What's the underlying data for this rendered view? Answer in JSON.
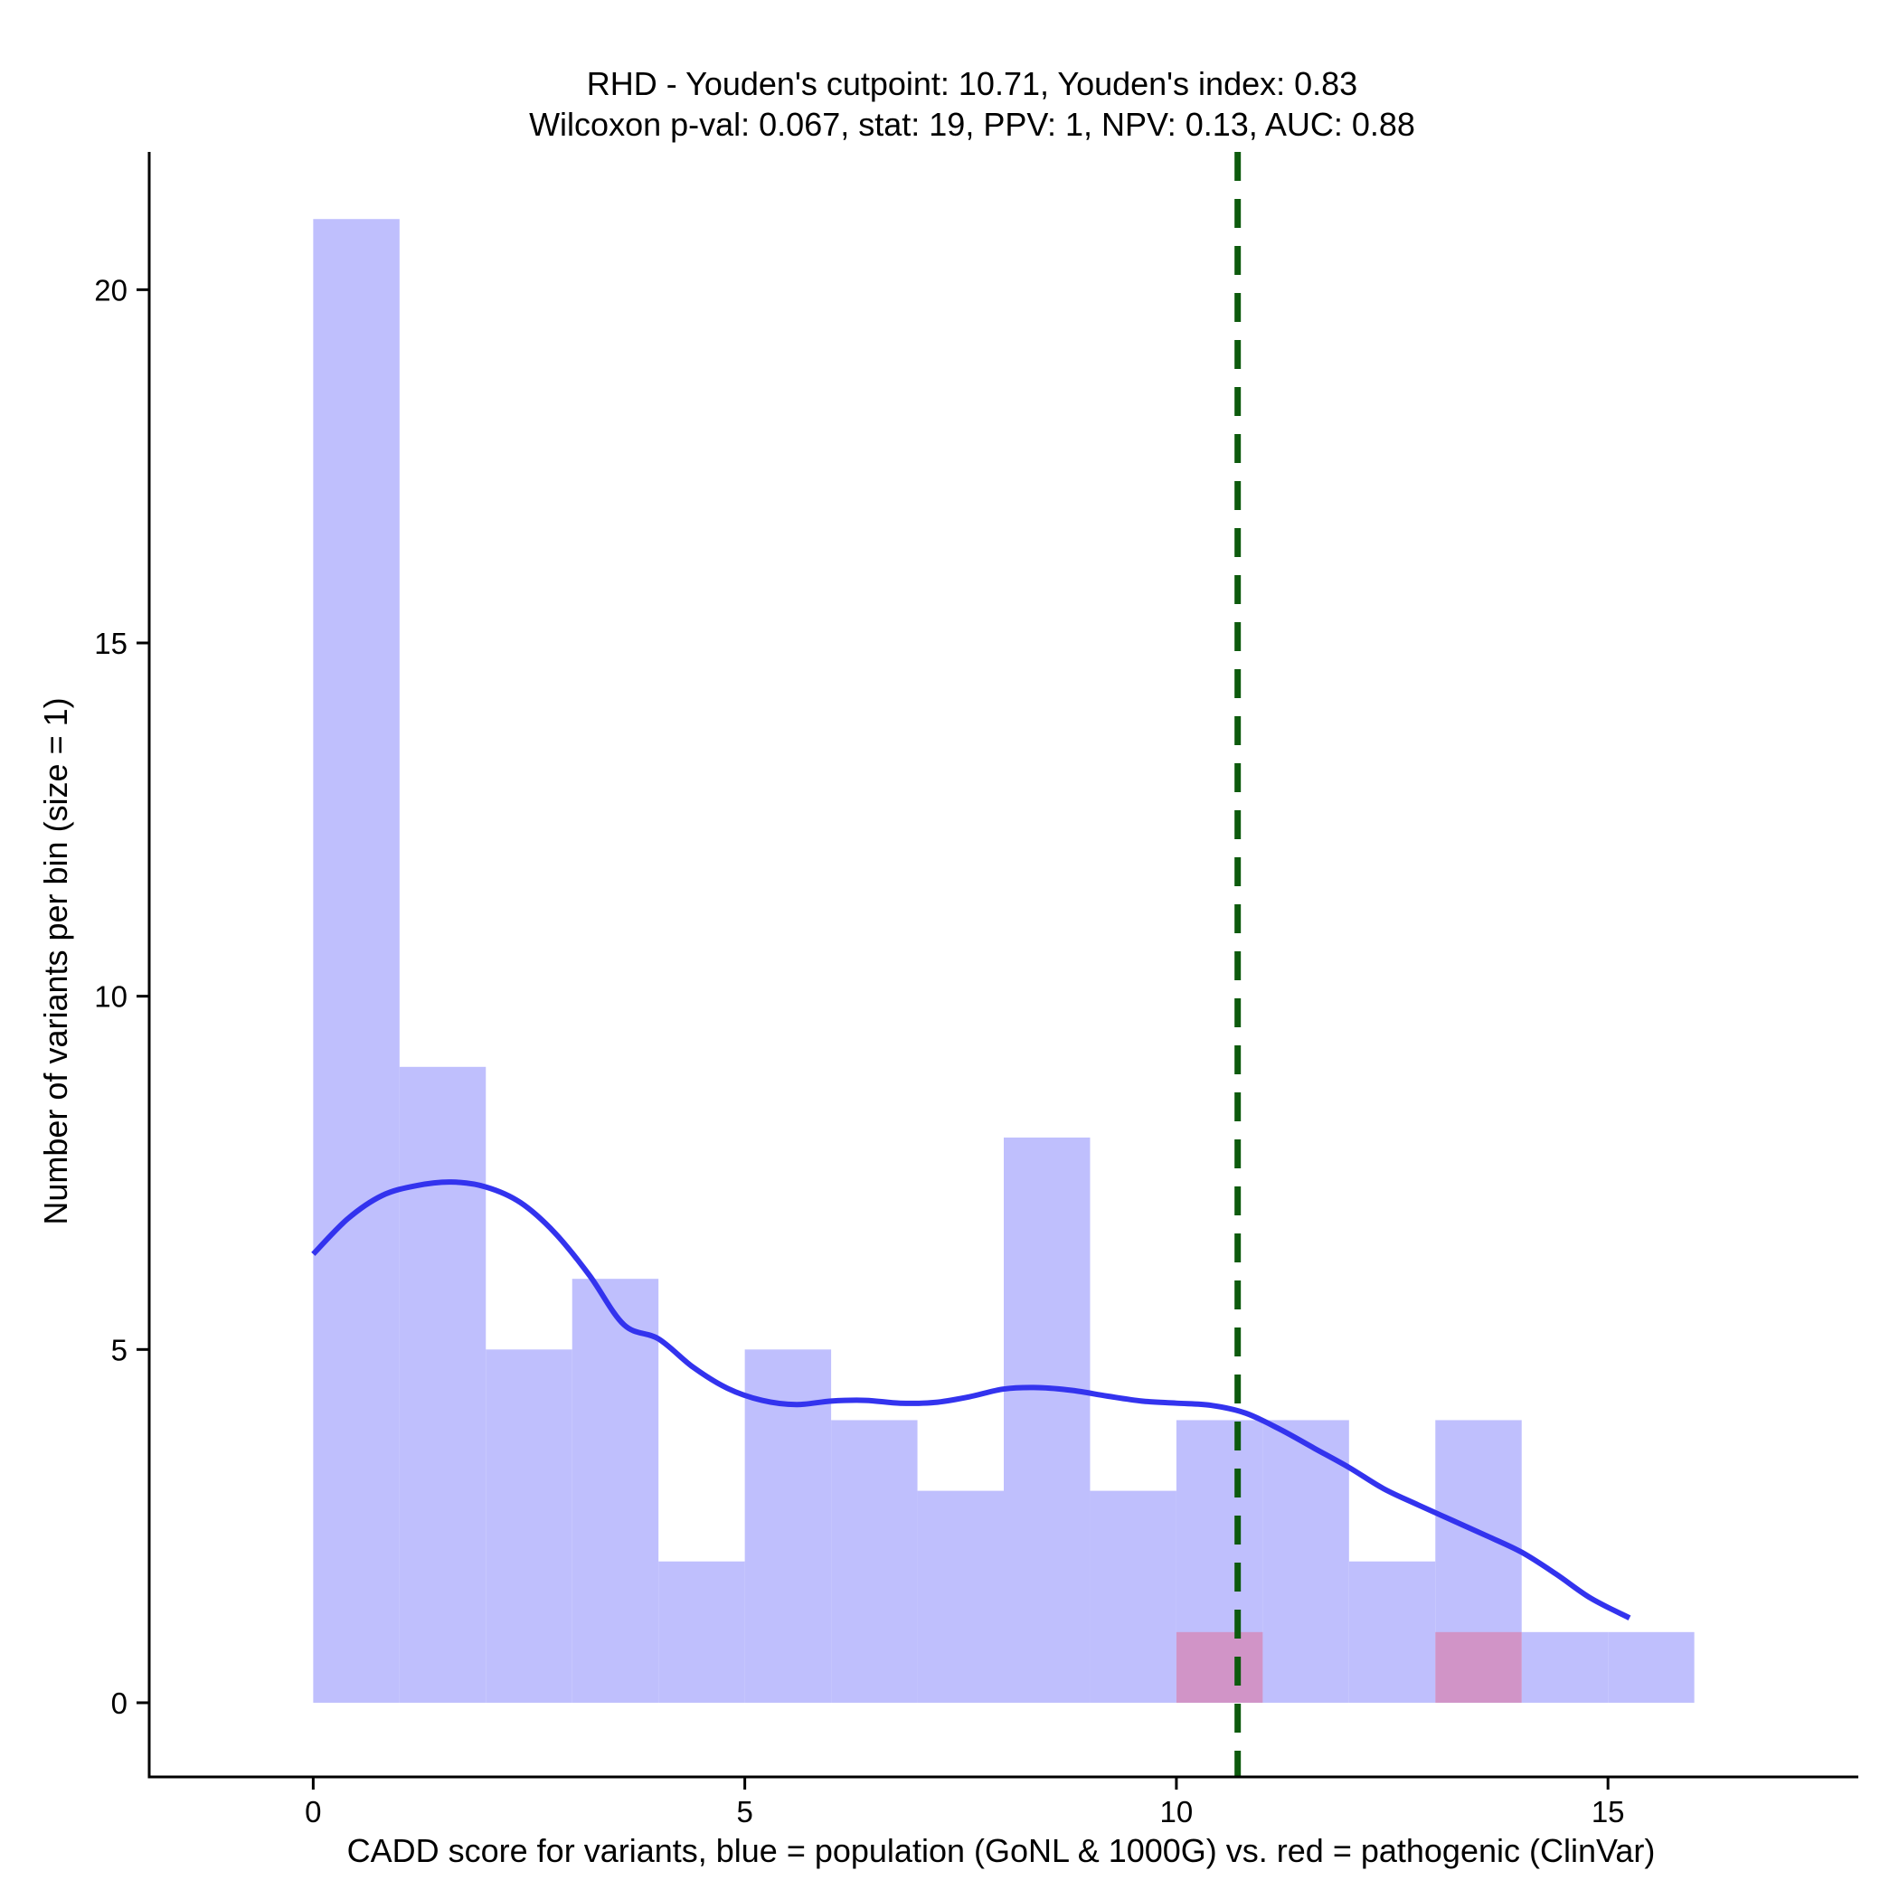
{
  "chart_data": {
    "type": "bar",
    "title_lines": [
      "RHD - Youden's cutpoint: 10.71, Youden's index: 0.83",
      "Wilcoxon p-val: 0.067, stat: 19, PPV: 1, NPV: 0.13, AUC: 0.88"
    ],
    "xlabel": "CADD score for variants, blue = population (GoNL & 1000G) vs. red = pathogenic (ClinVar)",
    "ylabel": "Number of variants per bin (size = 1)",
    "xlim": [
      -1.9,
      17.9
    ],
    "ylim": [
      -1.05,
      21.95
    ],
    "x_ticks": [
      0,
      5,
      10,
      15
    ],
    "y_ticks": [
      0,
      5,
      10,
      15,
      20
    ],
    "bin_width": 1,
    "cutpoint": 10.71,
    "colors": {
      "population": "#bfbffd",
      "pathogenic": "#d194c7",
      "density": "#3333ee",
      "cutpoint": "#0d5a0d",
      "axis": "#000000"
    },
    "series": [
      {
        "bin_starts": [
          0,
          1,
          2,
          3,
          4,
          5,
          6,
          7,
          8,
          9,
          10,
          11,
          12,
          13,
          14,
          15
        ],
        "values": [
          21,
          9,
          5,
          6,
          2,
          5,
          4,
          3,
          8,
          3,
          4,
          4,
          2,
          4,
          1,
          1
        ]
      },
      {
        "bin_starts": [
          10,
          13
        ],
        "values": [
          1,
          1
        ]
      }
    ],
    "density_line": {
      "x": [
        0,
        0.4,
        0.8,
        1.2,
        1.6,
        2.0,
        2.4,
        2.8,
        3.2,
        3.6,
        4.0,
        4.4,
        4.8,
        5.2,
        5.6,
        6.0,
        6.4,
        6.8,
        7.2,
        7.6,
        8.0,
        8.4,
        8.8,
        9.2,
        9.6,
        10.0,
        10.4,
        10.8,
        11.2,
        11.6,
        12.0,
        12.4,
        12.8,
        13.2,
        13.6,
        14.0,
        14.4,
        14.8,
        15.25
      ],
      "y": [
        6.35,
        6.85,
        7.18,
        7.32,
        7.37,
        7.3,
        7.08,
        6.65,
        6.05,
        5.35,
        5.15,
        4.75,
        4.45,
        4.28,
        4.22,
        4.27,
        4.28,
        4.24,
        4.25,
        4.33,
        4.44,
        4.46,
        4.42,
        4.34,
        4.27,
        4.24,
        4.21,
        4.1,
        3.87,
        3.6,
        3.33,
        3.03,
        2.8,
        2.58,
        2.36,
        2.13,
        1.82,
        1.48,
        1.2
      ]
    }
  }
}
